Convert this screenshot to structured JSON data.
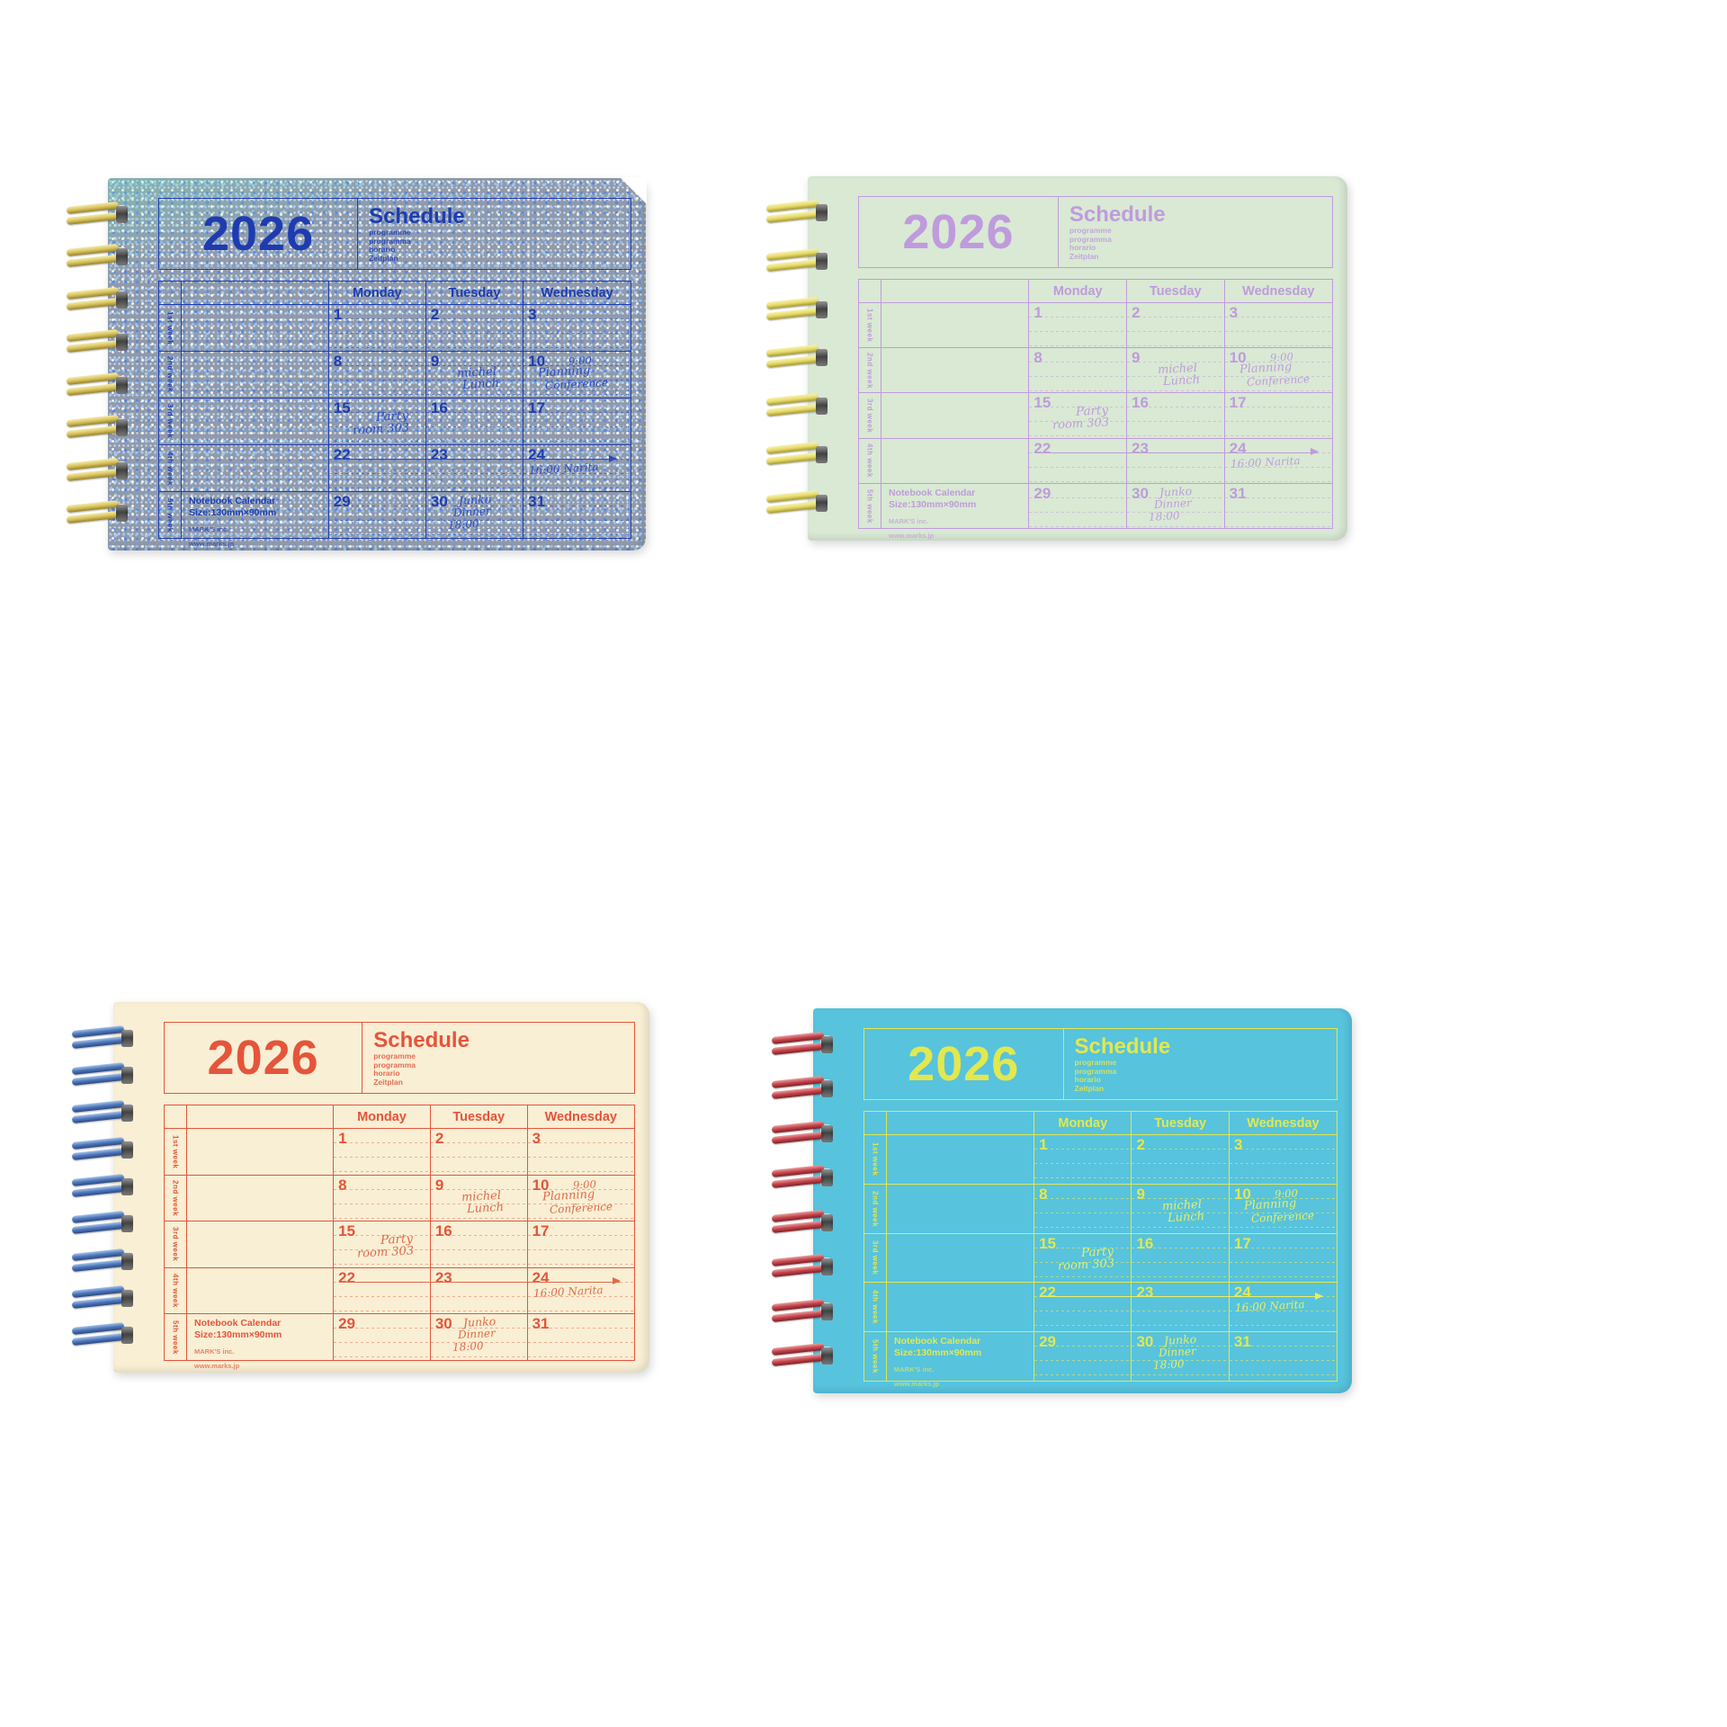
{
  "page": {
    "background": "#ffffff",
    "description": "Four MARK'S 2026 notebook calendars (size S) in a 2x2 product collage"
  },
  "shared": {
    "year": "2026",
    "title": "Schedule",
    "subtitle_lines": [
      "programme",
      "programma",
      "horario",
      "Zeitplan"
    ],
    "days": [
      "Monday",
      "Tuesday",
      "Wednesday"
    ],
    "week_labels": [
      "1st week",
      "2nd week",
      "3rd week",
      "4th week",
      "5th week"
    ],
    "weeks": [
      {
        "dates": [
          "1",
          "2",
          "3"
        ]
      },
      {
        "dates": [
          "8",
          "9",
          "10"
        ]
      },
      {
        "dates": [
          "15",
          "16",
          "17"
        ]
      },
      {
        "dates": [
          "22",
          "23",
          "24"
        ]
      },
      {
        "dates": [
          "29",
          "30",
          "31"
        ]
      }
    ],
    "annotations": {
      "michel": {
        "cell": "Tuesday 9",
        "lines": [
          "michel",
          "Lunch"
        ]
      },
      "planning": {
        "cell": "Wednesday 10",
        "lines": [
          "9:00",
          "Planning",
          "Conference"
        ]
      },
      "party": {
        "cell": "Monday 15",
        "lines": [
          "Party",
          "room 303"
        ]
      },
      "narita": {
        "cell": "Wednesday 24",
        "lines": [
          "16:00 Narita"
        ],
        "arrow_icon": "→"
      },
      "junko": {
        "cell": "Tuesday 30",
        "lines": [
          "Junko",
          "Dinner",
          "18:00"
        ]
      }
    },
    "footer": {
      "product": "Notebook Calendar",
      "size": "Size:130mm×90mm",
      "brand": "MARK'S inc.",
      "site": "www.marks.jp"
    }
  },
  "notebooks": [
    {
      "name": "holographic-glitter-blue",
      "style": "holo",
      "coil_count": 8,
      "colors": {
        "cover": "#8f9aac",
        "print": "#1e3cb0",
        "hand": "#2b4bc0",
        "line": "rgba(30,60,176,0.50)",
        "spiral": "#d9c35f",
        "spiral_light": "#f4ecab",
        "spiral_dark": "#97832b"
      }
    },
    {
      "name": "mint-green",
      "style": "mint",
      "coil_count": 7,
      "colors": {
        "cover": "#d9e9d4",
        "print": "#bf9bdc",
        "hand": "#bf9bdc",
        "line": "rgba(191,155,220,0.50)",
        "spiral": "#e7db69",
        "spiral_light": "#f8f2b2",
        "spiral_dark": "#a69732"
      }
    },
    {
      "name": "ivory-cream",
      "style": "cream",
      "coil_count": 9,
      "colors": {
        "cover": "#f9efd4",
        "print": "#e5543b",
        "hand": "#e06a48",
        "line": "rgba(229,84,59,0.42)",
        "spiral": "#4e77ba",
        "spiral_light": "#a6c4ea",
        "spiral_dark": "#2a4a84"
      }
    },
    {
      "name": "turquoise-blue",
      "style": "turquoise",
      "coil_count": 8,
      "colors": {
        "cover": "#57c3dd",
        "print": "#e2e84e",
        "hand": "#e9ee67",
        "line": "rgba(230,236,85,0.60)",
        "spiral": "#c6434b",
        "spiral_light": "#e9a0a0",
        "spiral_dark": "#7e2128"
      }
    }
  ]
}
